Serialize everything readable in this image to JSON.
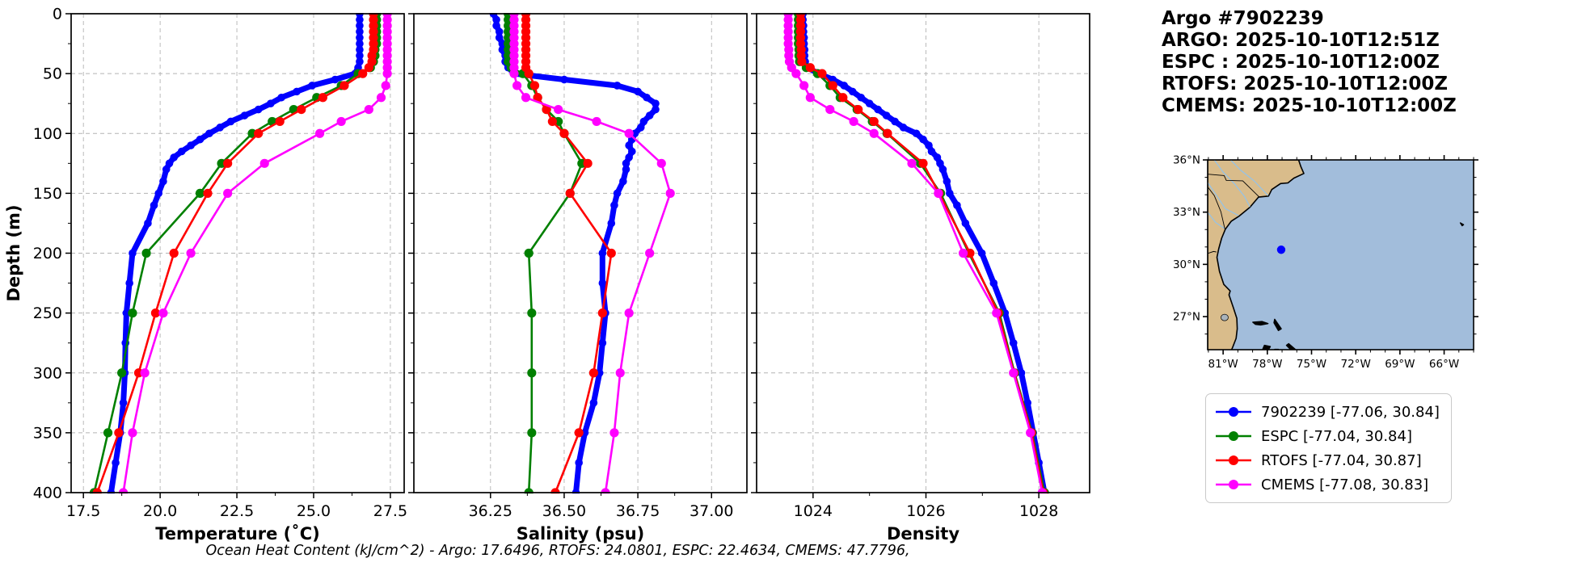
{
  "header": {
    "lines": [
      "Argo #7902239",
      "ARGO: 2025-10-10T12:51Z",
      "ESPC : 2025-10-10T12:00Z",
      "RTOFS: 2025-10-10T12:00Z",
      "CMEMS: 2025-10-10T12:00Z"
    ]
  },
  "footer": {
    "ohc_note": "Ocean Heat Content (kJ/cm^2) - Argo: 17.6496,  RTOFS: 24.0801,  ESPC: 22.4634,  CMEMS: 47.7796,"
  },
  "colors": {
    "argo": "#0000ff",
    "espc": "#008000",
    "rtofs": "#ff0000",
    "cmems": "#ff00ff",
    "grid": "#b3b3b3",
    "spine": "#000000",
    "land": "#d9bc8b",
    "ocean": "#a2bddb",
    "lake": "#a9b3bb",
    "river": "#93c3ea",
    "island": "#000000"
  },
  "legend": {
    "items": [
      {
        "label": "7902239 [-77.06, 30.84]",
        "color_key": "argo"
      },
      {
        "label": "ESPC [-77.04, 30.84]",
        "color_key": "espc"
      },
      {
        "label": "RTOFS [-77.04, 30.87]",
        "color_key": "rtofs"
      },
      {
        "label": "CMEMS [-77.08, 30.83]",
        "color_key": "cmems"
      }
    ]
  },
  "map": {
    "extent": {
      "lon": [
        -82.05,
        -64.0
      ],
      "lat": [
        25.1,
        36.0
      ]
    },
    "lon_ticks": [
      -81,
      -78,
      -75,
      -72,
      -69,
      -66
    ],
    "lon_tick_labels": [
      "81°W",
      "78°W",
      "75°W",
      "72°W",
      "69°W",
      "66°W"
    ],
    "lat_ticks": [
      36,
      33,
      30,
      27
    ],
    "lat_tick_labels": [
      "36°N",
      "33°N",
      "30°N",
      "27°N"
    ],
    "float_marker": {
      "lon": -77.06,
      "lat": 30.84,
      "color_key": "argo"
    }
  },
  "chart_data": [
    {
      "name": "temperature",
      "type": "line",
      "xlabel": "Temperature (˚C)",
      "ylabel": "Depth (m)",
      "xlim": [
        17.1,
        27.95
      ],
      "ylim": [
        0,
        400
      ],
      "y_inverted": true,
      "grid": true,
      "xticks": [
        17.5,
        20.0,
        22.5,
        25.0,
        27.5
      ],
      "xtick_labels": [
        "17.5",
        "20.0",
        "22.5",
        "25.0",
        "27.5"
      ],
      "yticks": [
        0,
        50,
        100,
        150,
        200,
        250,
        300,
        350,
        400
      ],
      "ytick_labels": [
        "0",
        "50",
        "100",
        "150",
        "200",
        "250",
        "300",
        "350",
        "400"
      ],
      "series": [
        {
          "name": "7902239",
          "color_key": "argo",
          "style": "thick",
          "depth": [
            0,
            5,
            10,
            15,
            20,
            25,
            30,
            35,
            40,
            45,
            50,
            55,
            60,
            65,
            70,
            75,
            80,
            85,
            90,
            95,
            100,
            105,
            110,
            115,
            120,
            125,
            130,
            140,
            150,
            160,
            175,
            200,
            225,
            250,
            275,
            300,
            325,
            350,
            375,
            400
          ],
          "values": [
            26.5,
            26.5,
            26.5,
            26.5,
            26.5,
            26.5,
            26.5,
            26.5,
            26.5,
            26.45,
            26.35,
            25.7,
            24.95,
            24.45,
            23.95,
            23.6,
            23.2,
            22.75,
            22.3,
            21.95,
            21.6,
            21.3,
            21.0,
            20.7,
            20.45,
            20.3,
            20.2,
            20.1,
            19.95,
            19.8,
            19.6,
            19.1,
            19.0,
            18.9,
            18.87,
            18.85,
            18.8,
            18.7,
            18.55,
            18.4
          ]
        },
        {
          "name": "ESPC",
          "color_key": "espc",
          "style": "model",
          "depth": [
            0,
            5,
            10,
            15,
            20,
            25,
            30,
            35,
            40,
            45,
            50,
            60,
            70,
            80,
            90,
            100,
            125,
            150,
            200,
            250,
            300,
            350,
            400
          ],
          "values": [
            27.05,
            27.05,
            27.05,
            27.05,
            27.05,
            27.05,
            27.0,
            27.0,
            26.95,
            26.85,
            26.45,
            25.9,
            25.1,
            24.35,
            23.65,
            23.0,
            22.0,
            21.3,
            19.55,
            19.1,
            18.75,
            18.3,
            17.85
          ]
        },
        {
          "name": "RTOFS",
          "color_key": "rtofs",
          "style": "model",
          "depth": [
            0,
            5,
            10,
            15,
            20,
            25,
            30,
            35,
            40,
            45,
            50,
            60,
            70,
            80,
            90,
            100,
            125,
            150,
            200,
            250,
            300,
            350,
            400
          ],
          "values": [
            26.95,
            26.95,
            26.95,
            26.95,
            26.95,
            26.95,
            26.95,
            26.9,
            26.9,
            26.8,
            26.6,
            26.0,
            25.3,
            24.6,
            23.9,
            23.2,
            22.2,
            21.55,
            20.45,
            19.85,
            19.3,
            18.65,
            17.95
          ]
        },
        {
          "name": "CMEMS",
          "color_key": "cmems",
          "style": "model",
          "depth": [
            0,
            5,
            10,
            15,
            20,
            25,
            30,
            35,
            40,
            45,
            50,
            60,
            70,
            80,
            90,
            100,
            125,
            150,
            200,
            250,
            300,
            350,
            400
          ],
          "values": [
            27.4,
            27.4,
            27.4,
            27.4,
            27.4,
            27.4,
            27.4,
            27.4,
            27.4,
            27.4,
            27.4,
            27.35,
            27.2,
            26.8,
            25.9,
            25.2,
            23.4,
            22.2,
            21.0,
            20.1,
            19.5,
            19.1,
            18.8
          ]
        }
      ]
    },
    {
      "name": "salinity",
      "type": "line",
      "xlabel": "Salinity (psu)",
      "ylabel": "",
      "xlim": [
        35.99,
        37.12
      ],
      "ylim": [
        0,
        400
      ],
      "y_inverted": true,
      "grid": true,
      "xticks": [
        36.25,
        36.5,
        36.75,
        37.0
      ],
      "xtick_labels": [
        "36.25",
        "36.50",
        "36.75",
        "37.00"
      ],
      "yticks": [
        0,
        50,
        100,
        150,
        200,
        250,
        300,
        350,
        400
      ],
      "ytick_labels": [],
      "series": [
        {
          "name": "7902239",
          "color_key": "argo",
          "style": "thick",
          "depth": [
            0,
            5,
            10,
            15,
            20,
            25,
            30,
            35,
            40,
            45,
            50,
            55,
            60,
            65,
            70,
            75,
            80,
            85,
            90,
            95,
            100,
            105,
            110,
            115,
            120,
            125,
            130,
            140,
            150,
            160,
            175,
            200,
            225,
            250,
            275,
            300,
            325,
            350,
            375,
            400
          ],
          "values": [
            36.26,
            36.27,
            36.27,
            36.28,
            36.28,
            36.29,
            36.29,
            36.3,
            36.3,
            36.31,
            36.33,
            36.5,
            36.68,
            36.75,
            36.78,
            36.81,
            36.81,
            36.79,
            36.77,
            36.76,
            36.74,
            36.73,
            36.72,
            36.73,
            36.72,
            36.71,
            36.71,
            36.7,
            36.68,
            36.67,
            36.66,
            36.63,
            36.63,
            36.64,
            36.63,
            36.62,
            36.6,
            36.57,
            36.55,
            36.54
          ]
        },
        {
          "name": "ESPC",
          "color_key": "espc",
          "style": "model",
          "depth": [
            0,
            5,
            10,
            15,
            20,
            25,
            30,
            35,
            40,
            45,
            50,
            60,
            70,
            80,
            90,
            100,
            125,
            150,
            200,
            250,
            300,
            350,
            400
          ],
          "values": [
            36.31,
            36.31,
            36.31,
            36.31,
            36.31,
            36.31,
            36.31,
            36.31,
            36.31,
            36.32,
            36.36,
            36.39,
            36.41,
            36.44,
            36.48,
            36.5,
            36.56,
            36.52,
            36.38,
            36.39,
            36.39,
            36.39,
            36.38
          ]
        },
        {
          "name": "RTOFS",
          "color_key": "rtofs",
          "style": "model",
          "depth": [
            0,
            5,
            10,
            15,
            20,
            25,
            30,
            35,
            40,
            45,
            50,
            60,
            70,
            80,
            90,
            100,
            125,
            150,
            200,
            250,
            300,
            350,
            400
          ],
          "values": [
            36.37,
            36.37,
            36.37,
            36.37,
            36.37,
            36.37,
            36.37,
            36.37,
            36.37,
            36.37,
            36.38,
            36.4,
            36.41,
            36.44,
            36.46,
            36.5,
            36.58,
            36.52,
            36.66,
            36.63,
            36.6,
            36.55,
            36.47
          ]
        },
        {
          "name": "CMEMS",
          "color_key": "cmems",
          "style": "model",
          "depth": [
            0,
            5,
            10,
            15,
            20,
            25,
            30,
            35,
            40,
            45,
            50,
            60,
            70,
            80,
            90,
            100,
            125,
            150,
            200,
            250,
            300,
            350,
            400
          ],
          "values": [
            36.33,
            36.33,
            36.33,
            36.33,
            36.33,
            36.33,
            36.33,
            36.33,
            36.33,
            36.33,
            36.33,
            36.34,
            36.37,
            36.48,
            36.61,
            36.72,
            36.83,
            36.86,
            36.79,
            36.72,
            36.69,
            36.67,
            36.64
          ]
        }
      ]
    },
    {
      "name": "density",
      "type": "line",
      "xlabel": "Density",
      "ylabel": "",
      "xlim": [
        1023.0,
        1028.9
      ],
      "ylim": [
        0,
        400
      ],
      "y_inverted": true,
      "grid": true,
      "xticks": [
        1024,
        1026,
        1028
      ],
      "xtick_labels": [
        "1024",
        "1026",
        "1028"
      ],
      "yticks": [
        0,
        50,
        100,
        150,
        200,
        250,
        300,
        350,
        400
      ],
      "ytick_labels": [],
      "series": [
        {
          "name": "7902239",
          "color_key": "argo",
          "style": "thick",
          "depth": [
            0,
            5,
            10,
            15,
            20,
            25,
            30,
            35,
            40,
            45,
            50,
            55,
            60,
            65,
            70,
            75,
            80,
            85,
            90,
            95,
            100,
            105,
            110,
            115,
            120,
            125,
            130,
            140,
            150,
            160,
            175,
            200,
            225,
            250,
            275,
            300,
            325,
            350,
            375,
            400
          ],
          "values": [
            1023.82,
            1023.82,
            1023.83,
            1023.83,
            1023.84,
            1023.84,
            1023.85,
            1023.85,
            1023.86,
            1023.9,
            1024.1,
            1024.35,
            1024.55,
            1024.7,
            1024.85,
            1025.0,
            1025.15,
            1025.3,
            1025.45,
            1025.6,
            1025.83,
            1025.95,
            1026.05,
            1026.1,
            1026.2,
            1026.25,
            1026.3,
            1026.37,
            1026.42,
            1026.55,
            1026.7,
            1026.99,
            1027.2,
            1027.4,
            1027.55,
            1027.69,
            1027.8,
            1027.9,
            1028.0,
            1028.1
          ]
        },
        {
          "name": "ESPC",
          "color_key": "espc",
          "style": "model",
          "depth": [
            0,
            5,
            10,
            15,
            20,
            25,
            30,
            35,
            40,
            45,
            50,
            60,
            70,
            80,
            90,
            100,
            125,
            150,
            200,
            250,
            300,
            350,
            400
          ],
          "values": [
            1023.74,
            1023.74,
            1023.74,
            1023.74,
            1023.74,
            1023.74,
            1023.75,
            1023.75,
            1023.76,
            1023.88,
            1024.08,
            1024.3,
            1024.48,
            1024.78,
            1025.05,
            1025.31,
            1025.9,
            1026.26,
            1026.76,
            1027.3,
            1027.57,
            1027.88,
            1028.1
          ]
        },
        {
          "name": "RTOFS",
          "color_key": "rtofs",
          "style": "model",
          "depth": [
            0,
            5,
            10,
            15,
            20,
            25,
            30,
            35,
            40,
            45,
            50,
            60,
            70,
            80,
            90,
            100,
            125,
            150,
            200,
            250,
            300,
            350,
            400
          ],
          "values": [
            1023.78,
            1023.78,
            1023.78,
            1023.78,
            1023.78,
            1023.78,
            1023.79,
            1023.79,
            1023.8,
            1023.95,
            1024.16,
            1024.35,
            1024.53,
            1024.8,
            1025.08,
            1025.32,
            1025.95,
            1026.23,
            1026.78,
            1027.28,
            1027.56,
            1027.87,
            1028.08
          ]
        },
        {
          "name": "CMEMS",
          "color_key": "cmems",
          "style": "model",
          "depth": [
            0,
            5,
            10,
            15,
            20,
            25,
            30,
            35,
            40,
            45,
            50,
            60,
            70,
            80,
            90,
            100,
            125,
            150,
            200,
            250,
            300,
            350,
            400
          ],
          "values": [
            1023.56,
            1023.56,
            1023.56,
            1023.56,
            1023.56,
            1023.56,
            1023.57,
            1023.57,
            1023.58,
            1023.62,
            1023.7,
            1023.84,
            1023.95,
            1024.3,
            1024.72,
            1025.08,
            1025.75,
            1026.22,
            1026.66,
            1027.25,
            1027.55,
            1027.85,
            1028.06
          ]
        }
      ]
    }
  ]
}
